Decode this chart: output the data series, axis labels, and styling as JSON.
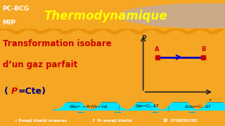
{
  "orange_color": "#F5A623",
  "header_bg": "#E8920A",
  "header_title_color": "#FFFF00",
  "header_title": "Thermodynamique",
  "left_text1": "PC-BCG",
  "left_text2": "MIP",
  "main_bg": "#FFFDE8",
  "main_text_line1": "Transformation isobare",
  "main_text_line2": "d’un gaz parfait",
  "main_text_color": "#CC0000",
  "formula_open": "(",
  "formula_P": "P",
  "formula_rest": "=Cte)",
  "formula_color_bracket": "#000080",
  "formula_color_P": "#CC0000",
  "box_bg": "#00E5FF",
  "box_border": "#00AACC",
  "box1_text": "$W_{AB}\\!=\\!-P_0(V_B\\!-\\!V_A)$",
  "box2_text": "$Q_{AB}\\!=\\!C_p.\\Delta T$",
  "box3_text": "$\\Delta U_{AB}\\!=\\!C_v.\\Delta T$",
  "graph_bg": "#FFFDE8",
  "axis_color": "#222222",
  "line_color": "#0000CC",
  "point_color": "#CC0000",
  "label_A": "A",
  "label_B": "B",
  "label_P": "P",
  "label_V": "V",
  "footer_bg": "#E8920A",
  "footer_text1": "• Ennaji khalid sciences",
  "footer_text2": "f  Pr ennaji khalid",
  "footer_text3": "☎  0706282282",
  "footer_color": "#FFFFFF",
  "profile_circle_color": "#CCAA88",
  "wavy_color": "#F5A623"
}
